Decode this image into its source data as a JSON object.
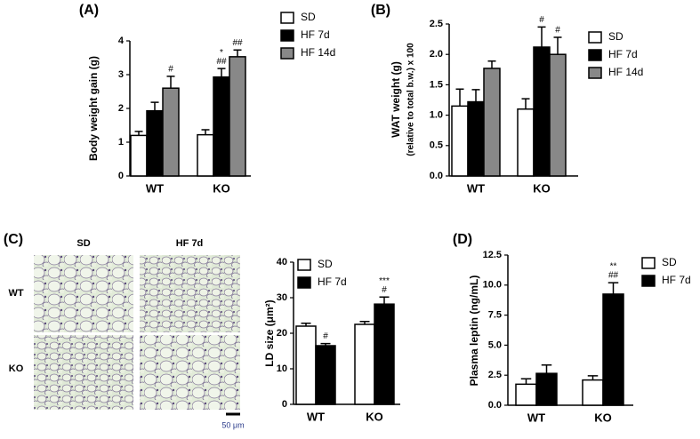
{
  "chart_data": [
    {
      "type": "bar",
      "title": "(A)",
      "ylabel": [
        "Body weight gain (g)"
      ],
      "categories": [
        "WT",
        "KO"
      ],
      "series": [
        {
          "name": "SD",
          "color": "#ffffff",
          "values": [
            1.2,
            1.22
          ],
          "errors": [
            0.12,
            0.15
          ]
        },
        {
          "name": "HF 7d",
          "color": "#000000",
          "values": [
            1.93,
            2.93
          ],
          "errors": [
            0.25,
            0.25
          ]
        },
        {
          "name": "HF 14d",
          "color": "#888888",
          "values": [
            2.6,
            3.53
          ],
          "errors": [
            0.35,
            0.2
          ]
        }
      ],
      "ylim": [
        0,
        4
      ],
      "yticks": [
        0,
        1,
        2,
        3,
        4
      ],
      "annotations": [
        {
          "text": "#",
          "category": "WT",
          "series": "HF 14d"
        },
        {
          "text": "*",
          "category": "KO",
          "series": "HF 7d"
        },
        {
          "text": "##",
          "category": "KO",
          "series": "HF 7d"
        },
        {
          "text": "##",
          "category": "KO",
          "series": "HF 14d"
        }
      ]
    },
    {
      "type": "bar",
      "title": "(B)",
      "ylabel": [
        "WAT weight (g)",
        "(relative to total b.w.) x 100"
      ],
      "categories": [
        "WT",
        "KO"
      ],
      "series": [
        {
          "name": "SD",
          "color": "#ffffff",
          "values": [
            1.15,
            1.1
          ],
          "errors": [
            0.28,
            0.17
          ]
        },
        {
          "name": "HF 7d",
          "color": "#000000",
          "values": [
            1.22,
            2.12
          ],
          "errors": [
            0.2,
            0.33
          ]
        },
        {
          "name": "HF 14d",
          "color": "#888888",
          "values": [
            1.77,
            2.0
          ],
          "errors": [
            0.12,
            0.28
          ]
        }
      ],
      "ylim": [
        0,
        2.5
      ],
      "yticks": [
        {
          "value": 0,
          "label": "0.0"
        },
        {
          "value": 0.5,
          "label": "0.5"
        },
        {
          "value": 1,
          "label": "1.0"
        },
        {
          "value": 1.5,
          "label": "1.5"
        },
        {
          "value": 2,
          "label": "2.0"
        },
        {
          "value": 2.5,
          "label": "2.5"
        }
      ],
      "annotations": [
        {
          "text": "#",
          "category": "KO",
          "series": "HF 7d"
        },
        {
          "text": "#",
          "category": "KO",
          "series": "HF 14d"
        }
      ]
    },
    {
      "type": "bar",
      "title": "(C)",
      "ylabel": [
        "LD size (μm²)"
      ],
      "categories": [
        "WT",
        "KO"
      ],
      "series": [
        {
          "name": "SD",
          "color": "#ffffff",
          "values": [
            22,
            22.5
          ],
          "errors": [
            0.8,
            0.8
          ]
        },
        {
          "name": "HF 7d",
          "color": "#000000",
          "values": [
            16.5,
            28.2
          ],
          "errors": [
            0.6,
            2
          ]
        }
      ],
      "ylim": [
        0,
        40
      ],
      "yticks": [
        0,
        10,
        20,
        30,
        40
      ],
      "annotations": [
        {
          "text": "#",
          "category": "WT",
          "series": "HF 7d"
        },
        {
          "text": "***",
          "category": "KO",
          "series": "HF 7d"
        },
        {
          "text": "#",
          "category": "KO",
          "series": "HF 7d"
        }
      ]
    },
    {
      "type": "bar",
      "title": "(D)",
      "ylabel": [
        "Plasma leptin (ng/mL)"
      ],
      "categories": [
        "WT",
        "KO"
      ],
      "series": [
        {
          "name": "SD",
          "color": "#ffffff",
          "values": [
            1.75,
            2.1
          ],
          "errors": [
            0.45,
            0.35
          ]
        },
        {
          "name": "HF 7d",
          "color": "#000000",
          "values": [
            2.65,
            9.25
          ],
          "errors": [
            0.7,
            0.95
          ]
        }
      ],
      "ylim": [
        0,
        12.5
      ],
      "yticks": [
        {
          "value": 0,
          "label": "0.0"
        },
        {
          "value": 2.5,
          "label": "2.5"
        },
        {
          "value": 5,
          "label": "5.0"
        },
        {
          "value": 7.5,
          "label": "7.5"
        },
        {
          "value": 10,
          "label": "10.0"
        },
        {
          "value": 12.5,
          "label": "12.5"
        }
      ],
      "annotations": [
        {
          "text": "**",
          "category": "KO",
          "series": "HF 7d"
        },
        {
          "text": "##",
          "category": "KO",
          "series": "HF 7d"
        }
      ]
    }
  ],
  "histology": {
    "columns": [
      "SD",
      "HF 7d"
    ],
    "rows": [
      "WT",
      "KO"
    ],
    "scale_bar": "50 μm"
  }
}
